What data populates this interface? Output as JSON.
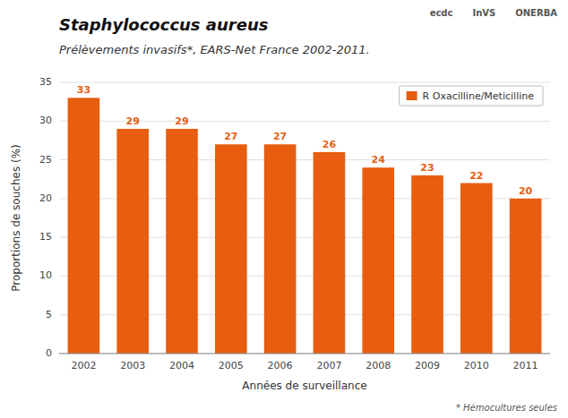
{
  "chart_data": {
    "type": "bar",
    "title": "Staphylococcus aureus",
    "subtitle": "Prélèvements invasifs*, EARS-Net France 2002-2011.",
    "x_label": "Années de surveillance",
    "y_label": "Proportions de souches (%)",
    "categories": [
      "2002",
      "2003",
      "2004",
      "2005",
      "2006",
      "2007",
      "2008",
      "2009",
      "2010",
      "2011"
    ],
    "series": [
      {
        "name": "R Oxacilline/Meticilline",
        "color": "#E85D10",
        "values": [
          33,
          29,
          29,
          27,
          27,
          26,
          24,
          23,
          22,
          20
        ]
      }
    ],
    "ylim": [
      0,
      35
    ],
    "yticks": [
      0,
      5,
      10,
      15,
      20,
      25,
      30,
      35
    ],
    "grid": true,
    "legend": "upper right",
    "data_labels": true,
    "annotations": [
      "ecdc",
      "InVS",
      "ONERBA",
      "* Hémocultures seules"
    ]
  }
}
